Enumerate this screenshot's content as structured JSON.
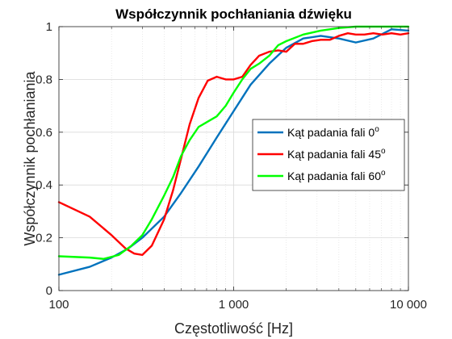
{
  "chart_data": {
    "type": "line",
    "title": "Współczynnik pochłaniania dźwięku",
    "xlabel": "Częstotliwość [Hz]",
    "ylabel": "Współczynnik pochłaniania",
    "xscale": "log",
    "xlim": [
      100,
      10000
    ],
    "ylim": [
      0,
      1
    ],
    "xticks": [
      100,
      1000,
      10000
    ],
    "xtick_labels": [
      "100",
      "1 000",
      "10 000"
    ],
    "yticks": [
      0,
      0.2,
      0.4,
      0.6,
      0.8,
      1
    ],
    "ytick_labels": [
      "0",
      "0.2",
      "0.4",
      "0.6",
      "0.8",
      "1"
    ],
    "grid": true,
    "minor_grid": true,
    "legend_placement": "right",
    "series": [
      {
        "name": "Kąt padania fali 0",
        "name_sup": "o",
        "color": "#0072BD",
        "x": [
          100,
          150,
          200,
          250,
          300,
          400,
          500,
          630,
          800,
          1000,
          1250,
          1600,
          2000,
          2500,
          3150,
          4000,
          5000,
          6300,
          8000,
          10000
        ],
        "y": [
          0.06,
          0.09,
          0.125,
          0.16,
          0.2,
          0.28,
          0.37,
          0.47,
          0.58,
          0.68,
          0.78,
          0.86,
          0.92,
          0.955,
          0.965,
          0.955,
          0.94,
          0.955,
          0.99,
          0.985
        ]
      },
      {
        "name": "Kąt padania fali 45",
        "name_sup": "o",
        "color": "#FF0000",
        "x": [
          100,
          150,
          200,
          240,
          270,
          300,
          340,
          400,
          450,
          500,
          560,
          630,
          710,
          800,
          900,
          1000,
          1120,
          1250,
          1400,
          1600,
          1800,
          2000,
          2240,
          2500,
          2800,
          3150,
          3550,
          4000,
          4500,
          5000,
          5600,
          6300,
          7100,
          8000,
          9000,
          10000
        ],
        "y": [
          0.335,
          0.28,
          0.21,
          0.16,
          0.14,
          0.135,
          0.17,
          0.27,
          0.38,
          0.5,
          0.63,
          0.73,
          0.795,
          0.81,
          0.8,
          0.8,
          0.81,
          0.855,
          0.89,
          0.905,
          0.91,
          0.905,
          0.935,
          0.935,
          0.945,
          0.95,
          0.95,
          0.965,
          0.975,
          0.97,
          0.97,
          0.975,
          0.97,
          0.975,
          0.97,
          0.975
        ]
      },
      {
        "name": "Kąt padania fali 60",
        "name_sup": "o",
        "color": "#00FF00",
        "x": [
          100,
          150,
          180,
          220,
          260,
          300,
          340,
          400,
          450,
          500,
          560,
          630,
          710,
          800,
          900,
          1000,
          1120,
          1250,
          1400,
          1600,
          1800,
          2000,
          2500,
          3150,
          4000,
          5000,
          6300,
          8000,
          10000
        ],
        "y": [
          0.13,
          0.125,
          0.12,
          0.135,
          0.17,
          0.21,
          0.27,
          0.36,
          0.43,
          0.51,
          0.57,
          0.62,
          0.64,
          0.66,
          0.7,
          0.75,
          0.8,
          0.84,
          0.86,
          0.89,
          0.93,
          0.945,
          0.97,
          0.985,
          0.995,
          1.0,
          1.0,
          1.0,
          1.0
        ]
      }
    ]
  }
}
